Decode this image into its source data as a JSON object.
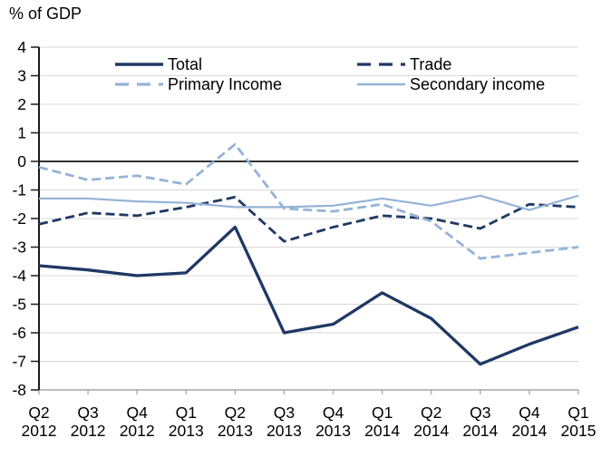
{
  "chart_data": {
    "type": "line",
    "title": "% of GDP",
    "categories": [
      "Q2 2012",
      "Q3 2012",
      "Q4 2012",
      "Q1 2013",
      "Q2 2013",
      "Q3 2013",
      "Q4 2013",
      "Q1 2014",
      "Q2 2014",
      "Q3 2014",
      "Q4 2014",
      "Q1 2015"
    ],
    "ylim": [
      -8,
      4
    ],
    "yticks": [
      4,
      3,
      2,
      1,
      0,
      -1,
      -2,
      -3,
      -4,
      -5,
      -6,
      -7,
      -8
    ],
    "grid": true,
    "legend_position": "top-inside-two-columns",
    "series": [
      {
        "name": "Total",
        "color": "#1F3864",
        "line_style": "solid",
        "values": [
          -3.65,
          -3.8,
          -4.0,
          -3.9,
          -2.3,
          -6.0,
          -5.7,
          -4.6,
          -5.5,
          -7.1,
          -6.4,
          -5.8
        ]
      },
      {
        "name": "Trade",
        "color": "#1F3864",
        "line_style": "dashed",
        "values": [
          -2.2,
          -1.8,
          -1.9,
          -1.6,
          -1.25,
          -2.8,
          -2.3,
          -1.9,
          -2.0,
          -2.35,
          -1.5,
          -1.6
        ]
      },
      {
        "name": "Primary Income",
        "color": "#95B3D7",
        "line_style": "dashed",
        "values": [
          -0.2,
          -0.65,
          -0.5,
          -0.8,
          0.6,
          -1.65,
          -1.75,
          -1.5,
          -2.1,
          -3.4,
          -3.2,
          -3.0
        ]
      },
      {
        "name": "Secondary income",
        "color": "#95B3D7",
        "line_style": "solid",
        "values": [
          -1.3,
          -1.3,
          -1.4,
          -1.45,
          -1.6,
          -1.6,
          -1.55,
          -1.3,
          -1.55,
          -1.2,
          -1.7,
          -1.2
        ]
      }
    ],
    "colors": {
      "gridline": "#D9D9D9",
      "zero_line": "#333333",
      "y_axis": "#1A1A1A",
      "x_axis": "#A6A6A6",
      "text": "#000000"
    }
  }
}
